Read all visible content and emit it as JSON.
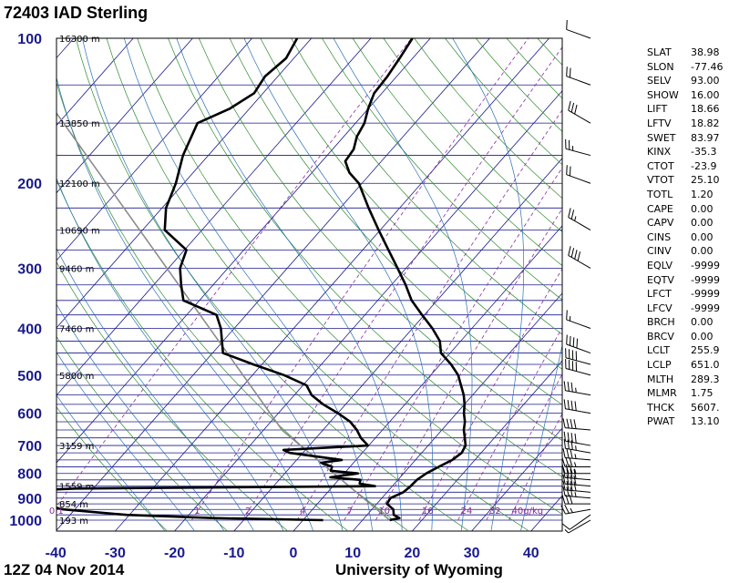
{
  "station": "72403 IAD Sterling",
  "date": "12Z 04 Nov 2014",
  "source": "University of Wyoming",
  "indices": [
    {
      "name": "SLAT",
      "value": "38.98"
    },
    {
      "name": "SLON",
      "value": "-77.46"
    },
    {
      "name": "SELV",
      "value": "93.00"
    },
    {
      "name": "SHOW",
      "value": "16.00"
    },
    {
      "name": "LIFT",
      "value": "18.66"
    },
    {
      "name": "LFTV",
      "value": "18.82"
    },
    {
      "name": "SWET",
      "value": "83.97"
    },
    {
      "name": "KINX",
      "value": "-35.3"
    },
    {
      "name": "CTOT",
      "value": "-23.9"
    },
    {
      "name": "VTOT",
      "value": "25.10"
    },
    {
      "name": "TOTL",
      "value": "1.20"
    },
    {
      "name": "CAPE",
      "value": "0.00"
    },
    {
      "name": "CAPV",
      "value": "0.00"
    },
    {
      "name": "CINS",
      "value": "0.00"
    },
    {
      "name": "CINV",
      "value": "0.00"
    },
    {
      "name": "EQLV",
      "value": "-9999"
    },
    {
      "name": "EQTV",
      "value": "-9999"
    },
    {
      "name": "LFCT",
      "value": "-9999"
    },
    {
      "name": "LFCV",
      "value": "-9999"
    },
    {
      "name": "BRCH",
      "value": "0.00"
    },
    {
      "name": "BRCV",
      "value": "0.00"
    },
    {
      "name": "LCLT",
      "value": "255.9"
    },
    {
      "name": "LCLP",
      "value": "651.0"
    },
    {
      "name": "MLTH",
      "value": "289.3"
    },
    {
      "name": "MLMR",
      "value": "1.75"
    },
    {
      "name": "THCK",
      "value": "5607."
    },
    {
      "name": "PWAT",
      "value": "13.10"
    }
  ],
  "chart_data": {
    "type": "skew-t log-p",
    "x_ticks": [
      -40,
      -30,
      -20,
      -10,
      0,
      10,
      20,
      30,
      40
    ],
    "xlim": [
      -40,
      45
    ],
    "plim": [
      1000,
      100
    ],
    "pressure_labels": [
      100,
      200,
      300,
      400,
      500,
      600,
      700,
      800,
      900,
      1000
    ],
    "height_labels": [
      {
        "p": 100,
        "label": "16300 m"
      },
      {
        "p": 150,
        "label": "13850 m"
      },
      {
        "p": 200,
        "label": "12100 m"
      },
      {
        "p": 250,
        "label": "10690 m"
      },
      {
        "p": 300,
        "label": "9460 m"
      },
      {
        "p": 400,
        "label": "7460 m"
      },
      {
        "p": 500,
        "label": "5800 m"
      },
      {
        "p": 700,
        "label": "3159 m"
      },
      {
        "p": 850,
        "label": "1559 m"
      },
      {
        "p": 925,
        "label": "854 m"
      },
      {
        "p": 1000,
        "label": "193 m"
      }
    ],
    "mixing_ratio_labels": [
      "0.1",
      "1",
      "2",
      "4",
      "7",
      "10",
      "16",
      "24",
      "32",
      "40g/kg"
    ],
    "temperature": [
      [
        1000,
        16.2
      ],
      [
        990,
        17.5
      ],
      [
        975,
        16.0
      ],
      [
        950,
        15.0
      ],
      [
        925,
        13.0
      ],
      [
        900,
        12.6
      ],
      [
        875,
        13.8
      ],
      [
        850,
        14.0
      ],
      [
        825,
        14.0
      ],
      [
        800,
        14.5
      ],
      [
        775,
        15.5
      ],
      [
        750,
        16.6
      ],
      [
        725,
        17.0
      ],
      [
        700,
        16.4
      ],
      [
        675,
        15.0
      ],
      [
        650,
        13.5
      ],
      [
        625,
        12.3
      ],
      [
        600,
        10.7
      ],
      [
        575,
        9.3
      ],
      [
        550,
        7.6
      ],
      [
        525,
        5.5
      ],
      [
        500,
        3.3
      ],
      [
        475,
        0.3
      ],
      [
        450,
        -3.3
      ],
      [
        425,
        -5.5
      ],
      [
        400,
        -8.9
      ],
      [
        375,
        -12.9
      ],
      [
        350,
        -17.1
      ],
      [
        325,
        -20.7
      ],
      [
        300,
        -24.9
      ],
      [
        275,
        -29.5
      ],
      [
        250,
        -34.5
      ],
      [
        225,
        -39.9
      ],
      [
        200,
        -45.7
      ],
      [
        190,
        -49.1
      ],
      [
        180,
        -51.7
      ],
      [
        170,
        -52.3
      ],
      [
        160,
        -53.9
      ],
      [
        150,
        -54.9
      ],
      [
        140,
        -56.7
      ],
      [
        130,
        -58.3
      ],
      [
        120,
        -58.9
      ],
      [
        110,
        -59.9
      ],
      [
        100,
        -61.1
      ]
    ],
    "dewpoint": [
      [
        1000,
        5.0
      ],
      [
        990,
        -14.0
      ],
      [
        975,
        -29.0
      ],
      [
        950,
        -40.5
      ],
      [
        925,
        -45.5
      ],
      [
        900,
        -50.0
      ],
      [
        875,
        -56.0
      ],
      [
        860,
        -42.0
      ],
      [
        850,
        8.0
      ],
      [
        840,
        5.0
      ],
      [
        825,
        4.5
      ],
      [
        815,
        -1.0
      ],
      [
        800,
        3.0
      ],
      [
        790,
        -2.0
      ],
      [
        775,
        -2.5
      ],
      [
        760,
        -5.0
      ],
      [
        750,
        -2.0
      ],
      [
        725,
        -12.0
      ],
      [
        715,
        -13.5
      ],
      [
        700,
        0.0
      ],
      [
        675,
        -2.5
      ],
      [
        650,
        -4.5
      ],
      [
        625,
        -7.0
      ],
      [
        600,
        -10.5
      ],
      [
        575,
        -14.5
      ],
      [
        550,
        -18.0
      ],
      [
        525,
        -20.5
      ],
      [
        500,
        -26.0
      ],
      [
        475,
        -33.0
      ],
      [
        450,
        -40.0
      ],
      [
        400,
        -44.5
      ],
      [
        375,
        -47.5
      ],
      [
        350,
        -55.5
      ],
      [
        325,
        -58.5
      ],
      [
        300,
        -61.5
      ],
      [
        275,
        -63.5
      ],
      [
        250,
        -70.5
      ],
      [
        225,
        -74.0
      ],
      [
        200,
        -76.5
      ],
      [
        175,
        -80.0
      ],
      [
        150,
        -83.0
      ],
      [
        140,
        -80.0
      ],
      [
        130,
        -78.5
      ],
      [
        120,
        -79.5
      ],
      [
        110,
        -79.0
      ],
      [
        100,
        -80.5
      ]
    ],
    "parcel_path": [
      [
        1000,
        16.2
      ],
      [
        651,
        -17.0
      ],
      [
        100,
        -130.0
      ]
    ],
    "wind_barbs": [
      {
        "p": 1000,
        "dir": 240,
        "kt": 5
      },
      {
        "p": 975,
        "dir": 235,
        "kt": 10
      },
      {
        "p": 950,
        "dir": 260,
        "kt": 25
      },
      {
        "p": 925,
        "dir": 270,
        "kt": 30
      },
      {
        "p": 900,
        "dir": 275,
        "kt": 35
      },
      {
        "p": 875,
        "dir": 275,
        "kt": 40
      },
      {
        "p": 850,
        "dir": 275,
        "kt": 40
      },
      {
        "p": 825,
        "dir": 275,
        "kt": 40
      },
      {
        "p": 800,
        "dir": 270,
        "kt": 35
      },
      {
        "p": 775,
        "dir": 270,
        "kt": 35
      },
      {
        "p": 750,
        "dir": 275,
        "kt": 35
      },
      {
        "p": 725,
        "dir": 280,
        "kt": 35
      },
      {
        "p": 700,
        "dir": 280,
        "kt": 40
      },
      {
        "p": 650,
        "dir": 275,
        "kt": 40
      },
      {
        "p": 600,
        "dir": 280,
        "kt": 40
      },
      {
        "p": 550,
        "dir": 280,
        "kt": 35
      },
      {
        "p": 500,
        "dir": 285,
        "kt": 40
      },
      {
        "p": 475,
        "dir": 285,
        "kt": 40
      },
      {
        "p": 450,
        "dir": 290,
        "kt": 40
      },
      {
        "p": 400,
        "dir": 290,
        "kt": 15
      },
      {
        "p": 300,
        "dir": 300,
        "kt": 40
      },
      {
        "p": 250,
        "dir": 300,
        "kt": 25
      },
      {
        "p": 200,
        "dir": 290,
        "kt": 20
      },
      {
        "p": 175,
        "dir": 285,
        "kt": 25
      },
      {
        "p": 150,
        "dir": 300,
        "kt": 30
      },
      {
        "p": 125,
        "dir": 290,
        "kt": 20
      },
      {
        "p": 100,
        "dir": 290,
        "kt": 10
      }
    ]
  }
}
